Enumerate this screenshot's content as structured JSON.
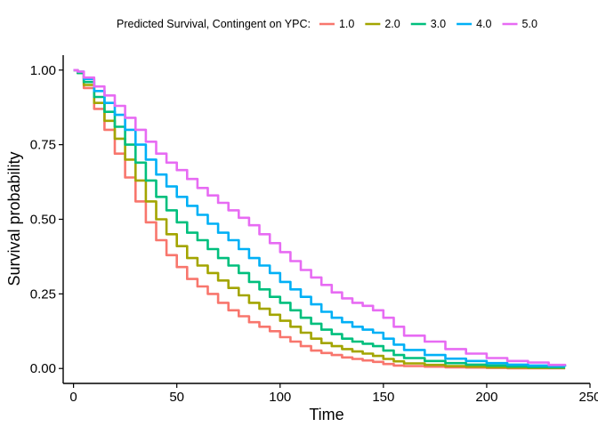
{
  "chart_data": {
    "type": "line",
    "step": true,
    "title": "",
    "xlabel": "Time",
    "ylabel": "Survival probability",
    "xlim": [
      -5,
      250
    ],
    "ylim": [
      -0.05,
      1.05
    ],
    "xticks": [
      0,
      50,
      100,
      150,
      200,
      250
    ],
    "xtick_labels": [
      "0",
      "50",
      "100",
      "150",
      "200",
      "250"
    ],
    "yticks": [
      0,
      0.25,
      0.5,
      0.75,
      1.0
    ],
    "ytick_labels": [
      "0.00",
      "0.25",
      "0.50",
      "0.75",
      "1.00"
    ],
    "grid": false,
    "legend": {
      "placement": "top",
      "title": "Predicted Survival, Contingent on YPC:"
    },
    "series": [
      {
        "name": "1.0",
        "color": "#F8766D",
        "x": [
          0,
          2,
          5,
          10,
          15,
          20,
          25,
          30,
          35,
          40,
          45,
          50,
          55,
          60,
          65,
          70,
          75,
          80,
          85,
          90,
          95,
          100,
          105,
          110,
          115,
          120,
          125,
          130,
          135,
          140,
          145,
          150,
          155,
          160,
          170,
          180,
          190,
          200,
          210,
          220,
          230,
          238
        ],
        "y": [
          1.0,
          0.99,
          0.94,
          0.87,
          0.8,
          0.72,
          0.64,
          0.56,
          0.49,
          0.43,
          0.38,
          0.34,
          0.3,
          0.275,
          0.25,
          0.22,
          0.195,
          0.175,
          0.155,
          0.14,
          0.125,
          0.105,
          0.09,
          0.075,
          0.06,
          0.052,
          0.045,
          0.037,
          0.032,
          0.027,
          0.022,
          0.015,
          0.01,
          0.008,
          0.006,
          0.004,
          0.003,
          0.002,
          0.001,
          0.001,
          0.001,
          0.001
        ]
      },
      {
        "name": "2.0",
        "color": "#A3A500",
        "x": [
          0,
          2,
          5,
          10,
          15,
          20,
          25,
          30,
          35,
          40,
          45,
          50,
          55,
          60,
          65,
          70,
          75,
          80,
          85,
          90,
          95,
          100,
          105,
          110,
          115,
          120,
          125,
          130,
          135,
          140,
          145,
          150,
          155,
          160,
          170,
          180,
          190,
          200,
          210,
          220,
          230,
          238
        ],
        "y": [
          1.0,
          0.99,
          0.95,
          0.89,
          0.83,
          0.77,
          0.7,
          0.63,
          0.56,
          0.5,
          0.45,
          0.41,
          0.37,
          0.345,
          0.32,
          0.295,
          0.27,
          0.245,
          0.22,
          0.2,
          0.18,
          0.16,
          0.14,
          0.12,
          0.1,
          0.085,
          0.075,
          0.065,
          0.057,
          0.05,
          0.042,
          0.032,
          0.024,
          0.017,
          0.012,
          0.008,
          0.006,
          0.004,
          0.003,
          0.002,
          0.002,
          0.002
        ]
      },
      {
        "name": "3.0",
        "color": "#00BF7D",
        "x": [
          0,
          2,
          5,
          10,
          15,
          20,
          25,
          30,
          35,
          40,
          45,
          50,
          55,
          60,
          65,
          70,
          75,
          80,
          85,
          90,
          95,
          100,
          105,
          110,
          115,
          120,
          125,
          130,
          135,
          140,
          145,
          150,
          155,
          160,
          170,
          180,
          190,
          200,
          210,
          220,
          230,
          238
        ],
        "y": [
          1.0,
          0.99,
          0.96,
          0.91,
          0.86,
          0.81,
          0.75,
          0.69,
          0.63,
          0.575,
          0.53,
          0.49,
          0.455,
          0.43,
          0.4,
          0.37,
          0.345,
          0.32,
          0.29,
          0.265,
          0.24,
          0.22,
          0.195,
          0.17,
          0.15,
          0.13,
          0.115,
          0.1,
          0.09,
          0.083,
          0.075,
          0.06,
          0.045,
          0.035,
          0.025,
          0.018,
          0.013,
          0.01,
          0.007,
          0.005,
          0.004,
          0.004
        ]
      },
      {
        "name": "4.0",
        "color": "#00B0F6",
        "x": [
          0,
          2,
          5,
          10,
          15,
          20,
          25,
          30,
          35,
          40,
          45,
          50,
          55,
          60,
          65,
          70,
          75,
          80,
          85,
          90,
          95,
          100,
          105,
          110,
          115,
          120,
          125,
          130,
          135,
          140,
          145,
          150,
          155,
          160,
          170,
          180,
          190,
          200,
          210,
          220,
          230,
          238
        ],
        "y": [
          1.0,
          0.995,
          0.97,
          0.93,
          0.89,
          0.85,
          0.8,
          0.75,
          0.7,
          0.65,
          0.61,
          0.575,
          0.545,
          0.515,
          0.485,
          0.455,
          0.43,
          0.4,
          0.37,
          0.345,
          0.32,
          0.29,
          0.265,
          0.24,
          0.215,
          0.19,
          0.17,
          0.155,
          0.14,
          0.13,
          0.12,
          0.1,
          0.08,
          0.062,
          0.045,
          0.033,
          0.025,
          0.018,
          0.013,
          0.01,
          0.008,
          0.007
        ]
      },
      {
        "name": "5.0",
        "color": "#E76BF3",
        "x": [
          0,
          2,
          5,
          10,
          15,
          20,
          25,
          30,
          35,
          40,
          45,
          50,
          55,
          60,
          65,
          70,
          75,
          80,
          85,
          90,
          95,
          100,
          105,
          110,
          115,
          120,
          125,
          130,
          135,
          140,
          145,
          150,
          155,
          160,
          170,
          180,
          190,
          200,
          210,
          220,
          230,
          238
        ],
        "y": [
          1.0,
          0.995,
          0.975,
          0.945,
          0.915,
          0.88,
          0.84,
          0.8,
          0.76,
          0.72,
          0.69,
          0.665,
          0.635,
          0.605,
          0.58,
          0.555,
          0.53,
          0.505,
          0.48,
          0.45,
          0.42,
          0.39,
          0.36,
          0.33,
          0.305,
          0.28,
          0.255,
          0.235,
          0.22,
          0.21,
          0.195,
          0.17,
          0.14,
          0.11,
          0.09,
          0.065,
          0.05,
          0.035,
          0.025,
          0.02,
          0.012,
          0.01
        ]
      }
    ]
  }
}
